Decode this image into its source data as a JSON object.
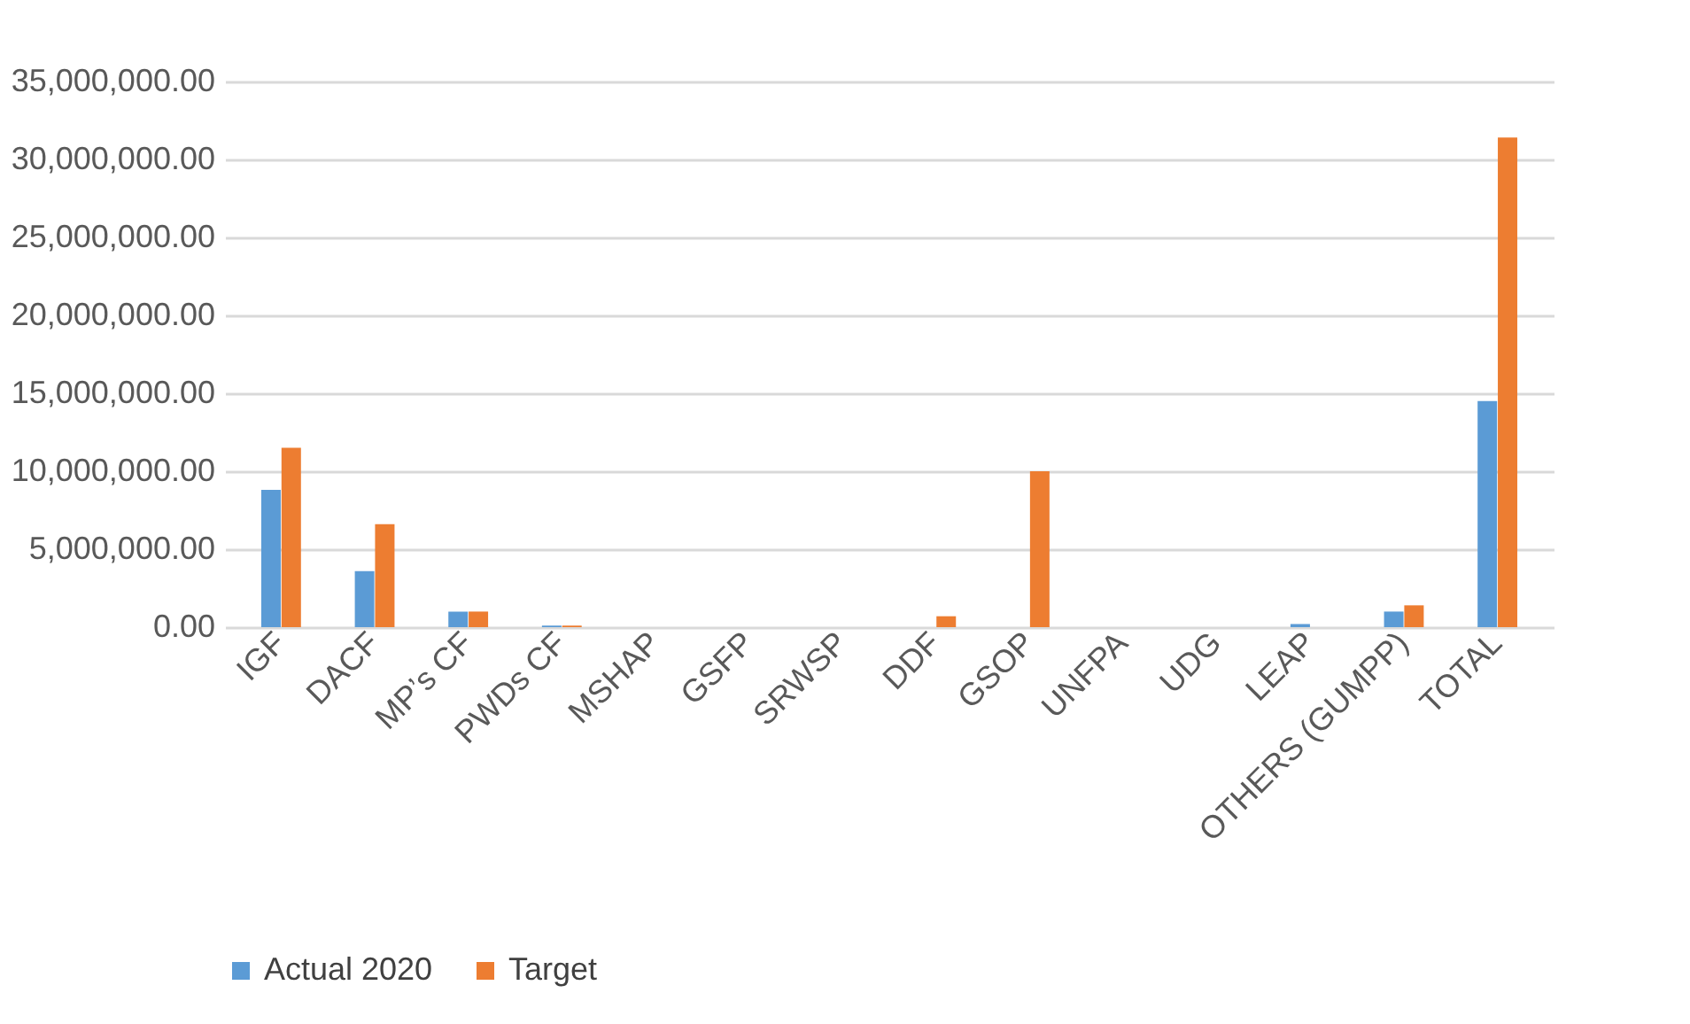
{
  "chart_data": {
    "type": "bar",
    "categories": [
      "IGF",
      "DACF",
      "MP’s CF",
      "PWDs CF",
      "MSHAP",
      "GSFP",
      "SRWSP",
      "DDF",
      "GSOP",
      "UNFPA",
      "UDG",
      "LEAP",
      "OTHERS (GUMPP)",
      "TOTAL"
    ],
    "series": [
      {
        "name": "Actual 2020",
        "color": "#5b9bd5",
        "values": [
          8800000,
          3600000,
          1000000,
          100000,
          0,
          0,
          0,
          0,
          0,
          0,
          0,
          200000,
          1000000,
          14500000
        ]
      },
      {
        "name": "Target",
        "color": "#ed7d31",
        "values": [
          11500000,
          6600000,
          1000000,
          100000,
          0,
          0,
          0,
          700000,
          10000000,
          0,
          0,
          0,
          1400000,
          31400000
        ]
      }
    ],
    "ylim": [
      0,
      35000000
    ],
    "yticks": [
      {
        "value": 0,
        "label": "0.00"
      },
      {
        "value": 5000000,
        "label": "5,000,000.00"
      },
      {
        "value": 10000000,
        "label": "10,000,000.00"
      },
      {
        "value": 15000000,
        "label": "15,000,000.00"
      },
      {
        "value": 20000000,
        "label": "20,000,000.00"
      },
      {
        "value": 25000000,
        "label": "25,000,000.00"
      },
      {
        "value": 30000000,
        "label": "30,000,000.00"
      },
      {
        "value": 35000000,
        "label": "35,000,000.00"
      }
    ],
    "grid": "y",
    "legend": "bottom"
  }
}
